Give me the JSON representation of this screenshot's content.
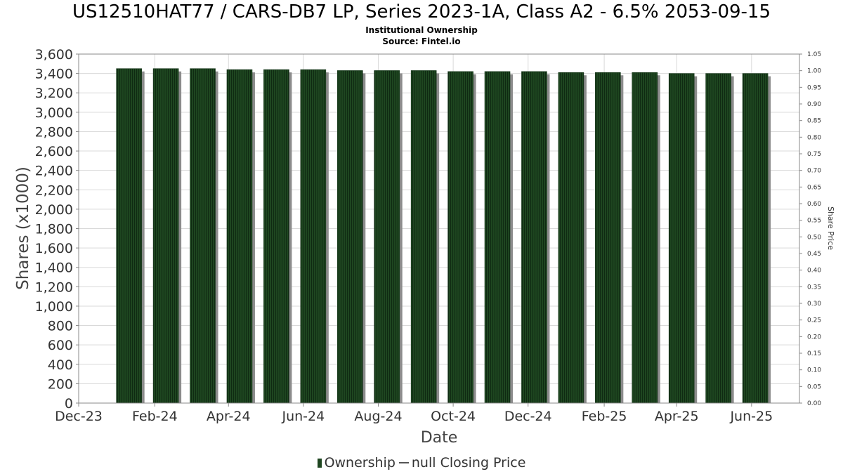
{
  "header": {
    "title": "US12510HAT77 / CARS-DB7 LP, Series 2023-1A, Class A2 - 6.5% 2053-09-15",
    "subtitle_1": "Institutional Ownership",
    "subtitle_2": "Source: Fintel.io"
  },
  "legend": {
    "ownership_label": "Ownership",
    "price_label": "null Closing Price"
  },
  "colors": {
    "bar": "#1e4620",
    "bar_shadow": "#8c8c8c",
    "grid": "#d9d9d9",
    "axis": "#888888"
  },
  "chart_data": {
    "type": "bar",
    "title": "US12510HAT77 / CARS-DB7 LP, Series 2023-1A, Class A2 - 6.5% 2053-09-15",
    "subtitle": "Institutional Ownership",
    "xlabel": "Date",
    "ylabel": "Shares (x1000)",
    "y2label": "Share Price",
    "ylim": [
      0,
      3600
    ],
    "y2lim": [
      0,
      1.05
    ],
    "x_range": [
      "2023-12-01",
      "2025-07-10"
    ],
    "x_tick_labels": [
      "Dec-23",
      "Feb-24",
      "Apr-24",
      "Jun-24",
      "Aug-24",
      "Oct-24",
      "Dec-24",
      "Feb-25",
      "Apr-25",
      "Jun-25"
    ],
    "x_tick_dates": [
      "2023-12-01",
      "2024-02-01",
      "2024-04-01",
      "2024-06-01",
      "2024-08-01",
      "2024-10-01",
      "2024-12-01",
      "2025-02-01",
      "2025-04-01",
      "2025-06-01"
    ],
    "y_ticks": [
      0,
      200,
      400,
      600,
      800,
      1000,
      1200,
      1400,
      1600,
      1800,
      2000,
      2200,
      2400,
      2600,
      2800,
      3000,
      3200,
      3400,
      3600
    ],
    "y2_ticks": [
      "0.00",
      "0.05",
      "0.10",
      "0.15",
      "0.20",
      "0.25",
      "0.30",
      "0.35",
      "0.40",
      "0.45",
      "0.50",
      "0.55",
      "0.60",
      "0.65",
      "0.70",
      "0.75",
      "0.80",
      "0.85",
      "0.90",
      "0.95",
      "1.00",
      "1.05"
    ],
    "grid": true,
    "legend_position": "bottom",
    "series": [
      {
        "name": "Ownership",
        "dates": [
          "2024-01-11",
          "2024-02-10",
          "2024-03-11",
          "2024-04-10",
          "2024-05-10",
          "2024-06-09",
          "2024-07-09",
          "2024-08-08",
          "2024-09-07",
          "2024-10-07",
          "2024-11-06",
          "2024-12-06",
          "2025-01-05",
          "2025-02-04",
          "2025-03-06",
          "2025-04-05",
          "2025-05-05",
          "2025-06-04"
        ],
        "values": [
          3450,
          3450,
          3450,
          3440,
          3440,
          3440,
          3430,
          3430,
          3430,
          3420,
          3420,
          3420,
          3410,
          3410,
          3410,
          3400,
          3400,
          3400
        ]
      }
    ]
  }
}
